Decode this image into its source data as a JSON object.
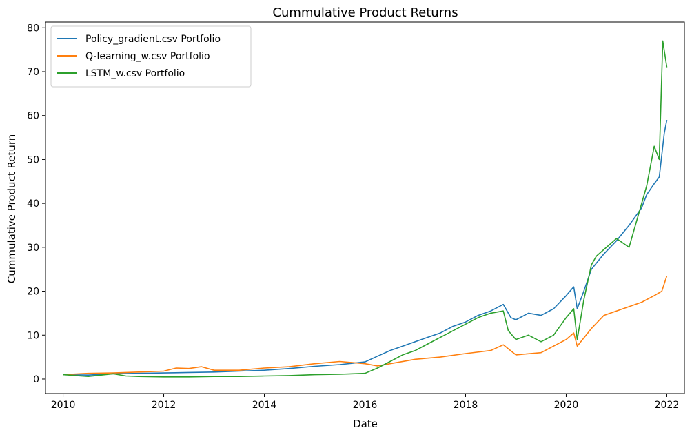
{
  "chart_data": {
    "type": "line",
    "title": "Cummulative Product Returns",
    "xlabel": "Date",
    "ylabel": "Cummulative Product Return",
    "x_ticks": [
      "2010",
      "2012",
      "2014",
      "2016",
      "2018",
      "2020",
      "2022"
    ],
    "y_ticks": [
      "0",
      "10",
      "20",
      "30",
      "40",
      "50",
      "60",
      "70",
      "80"
    ],
    "xlim": [
      2009.65,
      2022.35
    ],
    "ylim": [
      -3.3,
      81.3
    ],
    "grid": false,
    "legend_position": "top-left",
    "series": [
      {
        "name": "Policy_gradient.csv Portfolio",
        "color": "#1f77b4",
        "x": [
          2010.0,
          2010.5,
          2011.0,
          2011.5,
          2012.0,
          2012.5,
          2013.0,
          2013.5,
          2014.0,
          2014.5,
          2015.0,
          2015.5,
          2016.0,
          2016.25,
          2016.5,
          2016.75,
          2017.0,
          2017.25,
          2017.5,
          2017.75,
          2018.0,
          2018.25,
          2018.5,
          2018.75,
          2018.9,
          2019.0,
          2019.25,
          2019.5,
          2019.75,
          2020.0,
          2020.15,
          2020.22,
          2020.35,
          2020.5,
          2020.75,
          2021.0,
          2021.25,
          2021.5,
          2021.6,
          2021.75,
          2021.85,
          2021.95,
          2022.0
        ],
        "y": [
          1.0,
          0.9,
          1.2,
          1.3,
          1.4,
          1.5,
          1.6,
          1.8,
          2.0,
          2.4,
          2.9,
          3.3,
          3.9,
          5.2,
          6.5,
          7.5,
          8.5,
          9.5,
          10.5,
          12.0,
          13.0,
          14.5,
          15.5,
          17.0,
          14.0,
          13.5,
          15.0,
          14.5,
          16.0,
          19.0,
          21.0,
          16.0,
          20.0,
          25.0,
          28.5,
          31.5,
          35.0,
          39.0,
          42.0,
          44.5,
          46.0,
          56.0,
          59.0
        ]
      },
      {
        "name": "Q-learning_w.csv Portfolio",
        "color": "#ff7f0e",
        "x": [
          2010.0,
          2010.5,
          2011.0,
          2011.5,
          2012.0,
          2012.25,
          2012.5,
          2012.75,
          2013.0,
          2013.5,
          2014.0,
          2014.5,
          2015.0,
          2015.5,
          2016.0,
          2016.25,
          2016.5,
          2017.0,
          2017.5,
          2018.0,
          2018.5,
          2018.75,
          2019.0,
          2019.5,
          2020.0,
          2020.15,
          2020.22,
          2020.5,
          2020.75,
          2021.0,
          2021.5,
          2021.75,
          2021.9,
          2022.0
        ],
        "y": [
          1.0,
          1.3,
          1.4,
          1.6,
          1.8,
          2.5,
          2.4,
          2.8,
          2.0,
          2.0,
          2.5,
          2.8,
          3.5,
          4.0,
          3.5,
          3.0,
          3.5,
          4.5,
          5.0,
          5.8,
          6.5,
          7.8,
          5.5,
          6.0,
          9.0,
          10.5,
          7.5,
          11.5,
          14.5,
          15.5,
          17.5,
          19.0,
          20.0,
          23.5
        ]
      },
      {
        "name": "LSTM_w.csv Portfolio",
        "color": "#2ca02c",
        "x": [
          2010.0,
          2010.5,
          2011.0,
          2011.25,
          2011.5,
          2012.0,
          2012.5,
          2013.0,
          2013.5,
          2014.0,
          2014.5,
          2015.0,
          2015.5,
          2016.0,
          2016.25,
          2016.5,
          2016.75,
          2017.0,
          2017.25,
          2017.5,
          2017.75,
          2018.0,
          2018.25,
          2018.5,
          2018.75,
          2018.85,
          2019.0,
          2019.25,
          2019.5,
          2019.75,
          2020.0,
          2020.15,
          2020.22,
          2020.35,
          2020.5,
          2020.6,
          2020.75,
          2021.0,
          2021.25,
          2021.5,
          2021.6,
          2021.75,
          2021.85,
          2021.92,
          2022.0
        ],
        "y": [
          1.0,
          0.6,
          1.2,
          0.7,
          0.6,
          0.5,
          0.5,
          0.6,
          0.6,
          0.7,
          0.8,
          1.0,
          1.1,
          1.3,
          2.5,
          4.0,
          5.5,
          6.5,
          8.0,
          9.5,
          11.0,
          12.5,
          14.0,
          15.0,
          15.5,
          11.0,
          9.0,
          10.0,
          8.5,
          10.0,
          14.0,
          16.0,
          9.0,
          18.0,
          26.0,
          28.0,
          29.5,
          32.0,
          30.0,
          40.0,
          44.0,
          53.0,
          50.0,
          77.0,
          71.0
        ]
      }
    ]
  }
}
